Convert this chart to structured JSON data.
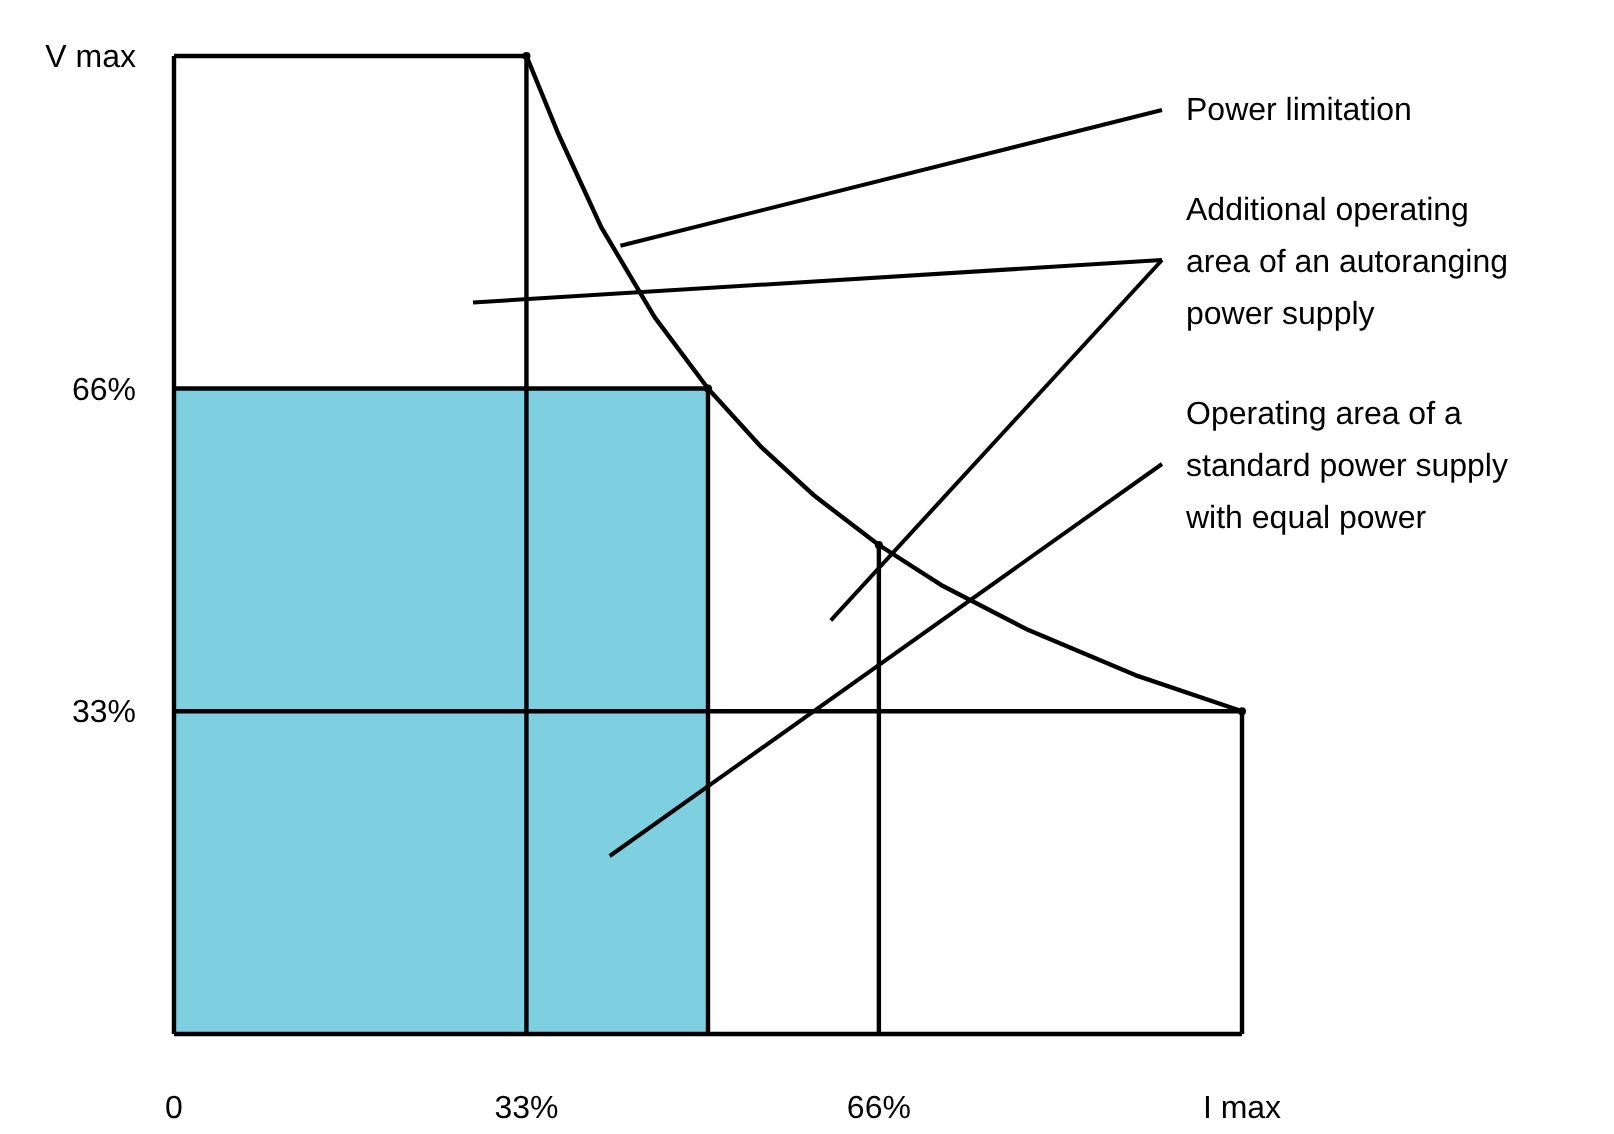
{
  "chart_data": {
    "type": "line",
    "xlim": [
      0,
      100
    ],
    "ylim": [
      0,
      100
    ],
    "xticks": [
      0,
      {
        "value": 33,
        "label": "33%"
      },
      {
        "value": 66,
        "label": "66%"
      },
      {
        "value": 100,
        "label": "I max"
      }
    ],
    "yticks": [
      {
        "value": 33,
        "label": "33%"
      },
      {
        "value": 66,
        "label": "66%"
      },
      {
        "value": 100,
        "label": "V max"
      }
    ],
    "grid": false,
    "marker": "none",
    "line_style": "solid",
    "series": [
      {
        "type": "area",
        "color": "#7ecfe0",
        "x": [
          0,
          50
        ],
        "values": [
          66,
          66
        ]
      },
      {
        "color": "#000000",
        "x": [
          33,
          36,
          40,
          45,
          50,
          55,
          60,
          66,
          72,
          80,
          90,
          100
        ],
        "values": [
          100,
          92,
          82.5,
          73.3,
          66,
          60,
          55,
          50,
          45.8,
          41.3,
          36.7,
          33
        ]
      },
      {
        "color": "#000000",
        "x": [
          0,
          33
        ],
        "values": [
          100,
          100
        ]
      },
      {
        "color": "#000000",
        "x": [
          0,
          100
        ],
        "values": [
          33,
          33
        ]
      },
      {
        "type": "lollipop",
        "marker": "circle",
        "color": "#000000",
        "x": [
          33,
          50,
          66,
          100
        ],
        "values": [
          100,
          66,
          50,
          33
        ]
      }
    ],
    "annotations": [
      "Power limitation",
      "Additional operating area of an autoranging power supply",
      "Operating area of a standard power supply with equal power"
    ]
  }
}
